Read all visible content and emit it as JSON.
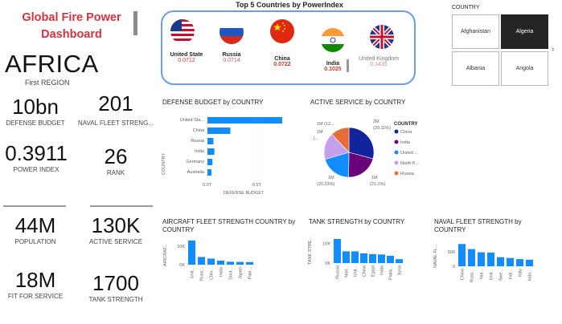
{
  "title": "Global Fire Power Dashboard",
  "region": {
    "value": "AFRICA",
    "label": "First REGION"
  },
  "kpis": {
    "defense_budget": {
      "value": "10bn",
      "label": "DEFENSE BUDGET"
    },
    "naval_fleet": {
      "value": "201",
      "label": "NAVAL FLEET STRENG..."
    },
    "power_index": {
      "value": "0.3911",
      "label": "POWER INDEX"
    },
    "rank": {
      "value": "26",
      "label": "RANK"
    },
    "population": {
      "value": "44M",
      "label": "POPULATION"
    },
    "active_service": {
      "value": "130K",
      "label": "ACTIVE SERVICE"
    },
    "fit_for_service": {
      "value": "18M",
      "label": "FIT FOR SERVICE"
    },
    "tank_strength": {
      "value": "1700",
      "label": "TANK STRENGTH"
    }
  },
  "top5": {
    "title": "Top 5 Countries by PowerIndex",
    "countries": [
      {
        "name": "United State",
        "value": "0.0712",
        "flag": "usa-flag"
      },
      {
        "name": "Russia",
        "value": "0.0714",
        "flag": "russia-flag"
      },
      {
        "name": "China",
        "value": "0.0722",
        "flag": "china-flag"
      },
      {
        "name": "India",
        "value": "0.1025",
        "flag": "india-flag"
      },
      {
        "name": "United Kingdom",
        "value": "0.1435",
        "flag": "uk-flag"
      }
    ]
  },
  "slicer": {
    "title": "COUNTRY",
    "options": [
      "Afghanistan",
      "Algeria",
      "Albania",
      "Angola"
    ],
    "selected": "Algeria",
    "next_icon": "chevron-right-icon"
  },
  "colors": {
    "bar": "#118dff",
    "accent": "#d1343f",
    "card_border": "#6b9ee2"
  },
  "defense_chart": {
    "title": "DEFENSE BUDGET by COUNTRY",
    "ylabel": "COUNTRY",
    "xlabel": "DEFENSE BUDGET",
    "ticks": [
      "0.0T",
      "0.5T"
    ]
  },
  "active_chart": {
    "title": "ACTIVE SERVICE by COUNTRY",
    "legend_title": "COUNTRY",
    "labels": [
      {
        "text": "1M (12...",
        "line2": ""
      },
      {
        "text": "1M",
        "line2": "(..."
      },
      {
        "text": "2M",
        "line2": "(29.11%)"
      },
      {
        "text": "1M",
        "line2": "(20.23%)"
      },
      {
        "text": "1M",
        "line2": "(21.1%)"
      }
    ]
  },
  "aircraft_chart": {
    "title": "AIRCRAFT FLEET STRENGTH  COUNTRY by COUNTRY",
    "ylabel": "AIRCRAF..."
  },
  "tank_chart": {
    "title": "TANK STRENGTH by COUNTRY",
    "ylabel": "TANK STRE..."
  },
  "naval_chart": {
    "title": "NAVAL FLEET STRENGTH by COUNTRY",
    "ylabel": "NAVAL FL..."
  },
  "chart_data": [
    {
      "type": "bar",
      "orientation": "horizontal",
      "title": "DEFENSE BUDGET by COUNTRY",
      "categories": [
        "United Sta...",
        "China",
        "Russia",
        "India",
        "Germany",
        "Australia"
      ],
      "values": [
        0.75,
        0.23,
        0.06,
        0.07,
        0.05,
        0.04
      ],
      "unit": "T",
      "xlabel": "DEFENSE BUDGET",
      "ylabel": "COUNTRY",
      "xlim": [
        0,
        0.8
      ]
    },
    {
      "type": "pie",
      "title": "ACTIVE SERVICE by COUNTRY",
      "legend_position": "right",
      "categories": [
        "China",
        "India",
        "United ...",
        "North K...",
        "Russia"
      ],
      "values": [
        29.11,
        21.1,
        20.23,
        17.56,
        12.0
      ],
      "colors": [
        "#12239e",
        "#6b007b",
        "#118dff",
        "#c5a0ee",
        "#e66c37"
      ]
    },
    {
      "type": "bar",
      "title": "AIRCRAFT FLEET STRENGTH  COUNTRY by COUNTRY",
      "categories": [
        "Unit...",
        "Russ...",
        "Chin...",
        "India",
        "Sout...",
        "Japan",
        "Paki..."
      ],
      "values": [
        13200,
        4200,
        3300,
        2200,
        1600,
        1500,
        1400
      ],
      "yticks": [
        "10K",
        "0K"
      ],
      "ylim": [
        0,
        14000
      ]
    },
    {
      "type": "bar",
      "title": "TANK STRENGTH by COUNTRY",
      "categories": [
        "Russia",
        "Nort...",
        "Unit...",
        "China",
        "Egypt",
        "India",
        "Pakis...",
        "Syria"
      ],
      "values": [
        12400,
        6000,
        6000,
        5000,
        4600,
        4400,
        3700,
        2000
      ],
      "yticks": [
        "10K",
        "0K"
      ],
      "ylim": [
        0,
        14000
      ]
    },
    {
      "type": "bar",
      "title": "NAVAL FLEET STRENGTH by COUNTRY",
      "categories": [
        "China",
        "Russ...",
        "Nor...",
        "Unit...",
        "Swe...",
        "Indi...",
        "Italy",
        "Indo..."
      ],
      "values": [
        780,
        600,
        490,
        480,
        320,
        290,
        250,
        230
      ],
      "yticks": [
        "500",
        "0"
      ],
      "ylim": [
        0,
        900
      ]
    }
  ]
}
